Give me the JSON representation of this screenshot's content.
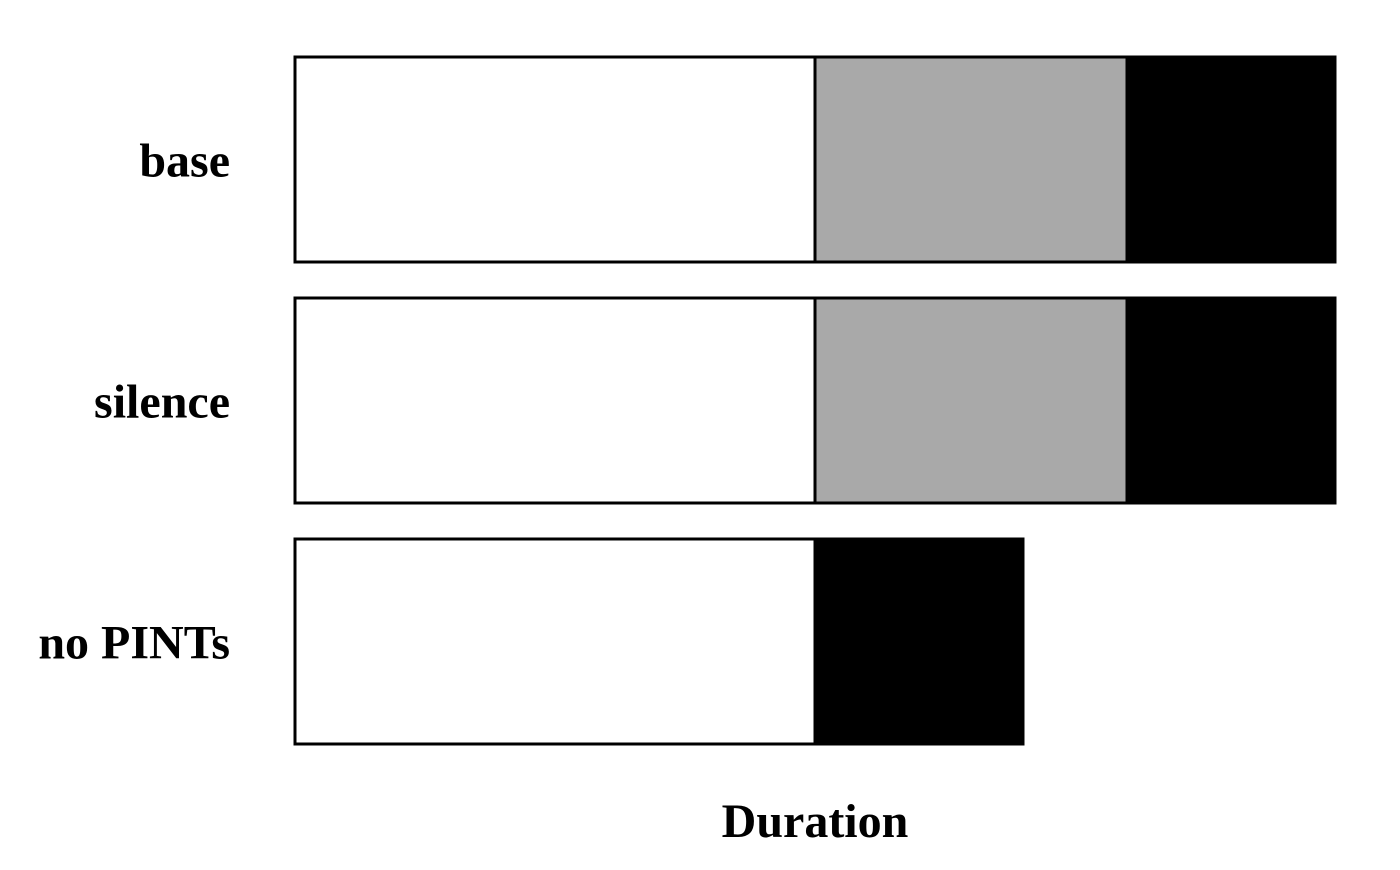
{
  "chart_data": {
    "type": "bar",
    "orientation": "horizontal",
    "stacked": true,
    "title": "",
    "xlabel": "Duration",
    "ylabel": "",
    "categories": [
      "base",
      "silence",
      "no PINTs"
    ],
    "series": [
      {
        "values": [
          50,
          50,
          50
        ],
        "color": "#ffffff"
      },
      {
        "values": [
          30,
          30,
          0
        ],
        "color": "#a9a9a9"
      },
      {
        "values": [
          20,
          20,
          20
        ],
        "color": "#000000"
      }
    ],
    "xlim": [
      0,
      100
    ],
    "grid": false,
    "legend": "none",
    "axis_ticks": false
  }
}
